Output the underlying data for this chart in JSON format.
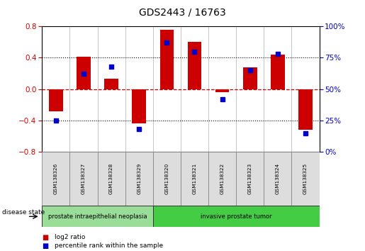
{
  "title": "GDS2443 / 16763",
  "samples": [
    "GSM138326",
    "GSM138327",
    "GSM138328",
    "GSM138329",
    "GSM138320",
    "GSM138321",
    "GSM138322",
    "GSM138323",
    "GSM138324",
    "GSM138325"
  ],
  "log2_ratio": [
    -0.28,
    0.41,
    0.13,
    -0.44,
    0.76,
    0.6,
    -0.04,
    0.28,
    0.44,
    -0.52
  ],
  "percentile_rank": [
    25,
    62,
    68,
    18,
    87,
    80,
    42,
    65,
    78,
    15
  ],
  "bar_color": "#cc0000",
  "dot_color": "#0000cc",
  "ylim_left": [
    -0.8,
    0.8
  ],
  "ylim_right": [
    0,
    100
  ],
  "yticks_left": [
    -0.8,
    -0.4,
    0.0,
    0.4,
    0.8
  ],
  "yticks_right": [
    0,
    25,
    50,
    75,
    100
  ],
  "ytick_labels_right": [
    "0%",
    "25%",
    "50%",
    "75%",
    "100%"
  ],
  "disease_groups": [
    {
      "label": "prostate intraepithelial neoplasia",
      "start": 0,
      "end": 4,
      "color": "#99dd99"
    },
    {
      "label": "invasive prostate tumor",
      "start": 4,
      "end": 10,
      "color": "#44cc44"
    }
  ],
  "disease_state_label": "disease state",
  "legend_items": [
    {
      "color": "#cc0000",
      "label": "log2 ratio"
    },
    {
      "color": "#0000cc",
      "label": "percentile rank within the sample"
    }
  ],
  "bar_width": 0.5,
  "background_color": "#ffffff",
  "sample_box_color": "#dddddd",
  "sample_box_edge": "#888888"
}
